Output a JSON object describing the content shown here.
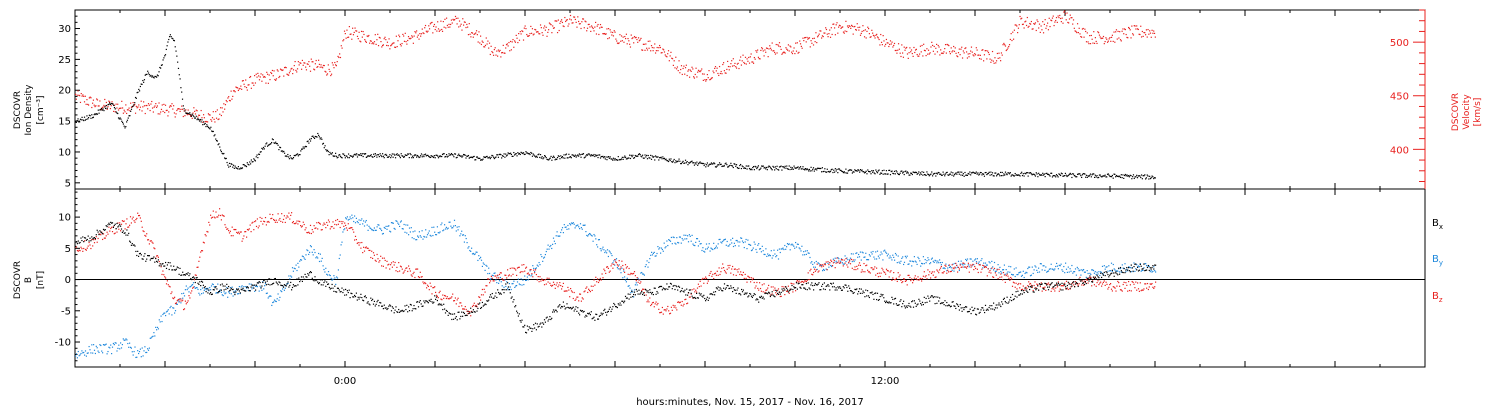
{
  "chart_data": [
    {
      "type": "scatter",
      "panel": "ion-density-and-velocity",
      "xlabel": "hours:minutes, Nov. 15, 2017 - Nov. 16, 2017",
      "x_range_hours": [
        -6,
        24
      ],
      "x_ticks": [
        {
          "hour": 0,
          "label": "0:00"
        },
        {
          "hour": 12,
          "label": "12:00"
        }
      ],
      "left_axis": {
        "label_lines": [
          "DSCOVR",
          "Ion Density",
          "[cm⁻³]"
        ],
        "ylim": [
          4,
          33
        ],
        "ticks": [
          5,
          10,
          15,
          20,
          25,
          30
        ],
        "color": "#000000"
      },
      "right_axis": {
        "label_lines": [
          "DSCOVR",
          "Velocity",
          "[km/s]"
        ],
        "ylim": [
          363,
          530
        ],
        "ticks": [
          400,
          450,
          500
        ],
        "color": "#e8201e"
      },
      "series": [
        {
          "color": "#000000",
          "axis": "left",
          "x": [
            -6.0,
            -5.6,
            -5.2,
            -4.9,
            -4.6,
            -4.4,
            -4.2,
            -4.0,
            -3.9,
            -3.8,
            -3.7,
            -3.6,
            -3.4,
            -3.2,
            -3.0,
            -2.8,
            -2.6,
            -2.4,
            -2.2,
            -2.0,
            -1.8,
            -1.6,
            -1.4,
            -1.2,
            -1.0,
            -0.8,
            -0.6,
            -0.4,
            -0.2,
            0.0,
            0.5,
            1.0,
            1.5,
            2.0,
            2.5,
            3.0,
            3.5,
            4.0,
            4.5,
            5.0,
            5.5,
            6.0,
            6.5,
            7.0,
            7.5,
            8.0,
            8.5,
            9.0,
            9.5,
            10.0,
            11.0,
            12.0,
            13.0,
            14.0,
            15.0,
            16.0,
            17.0,
            18.0
          ],
          "y": [
            15,
            16,
            18,
            14,
            20,
            23,
            22,
            26,
            29,
            28,
            23,
            17,
            16,
            15,
            14,
            11,
            8,
            7.5,
            8,
            9,
            11,
            12,
            10,
            9,
            10,
            12,
            13,
            10,
            9.5,
            9.5,
            9.5,
            9.5,
            9.5,
            9.5,
            9.5,
            9,
            9.5,
            10,
            9,
            9.5,
            9.5,
            9,
            9.5,
            9,
            8.5,
            8,
            8,
            7.5,
            7.5,
            7.5,
            7,
            6.8,
            6.5,
            6.5,
            6.5,
            6.3,
            6.2,
            6
          ]
        },
        {
          "color": "#e8201e",
          "axis": "right",
          "x": [
            -6.0,
            -5.5,
            -5.0,
            -4.5,
            -4.0,
            -3.5,
            -3.0,
            -2.8,
            -2.5,
            -2.0,
            -1.5,
            -1.0,
            -0.6,
            -0.4,
            -0.2,
            0.0,
            0.5,
            1.0,
            1.5,
            2.0,
            2.5,
            3.0,
            3.3,
            3.6,
            4.0,
            4.5,
            5.0,
            5.5,
            6.0,
            6.5,
            7.0,
            7.5,
            8.0,
            8.5,
            9.0,
            9.5,
            10.0,
            10.5,
            11.0,
            11.5,
            12.0,
            12.5,
            13.0,
            13.5,
            14.0,
            14.5,
            15.0,
            15.5,
            16.0,
            16.5,
            17.0,
            17.5,
            18.0
          ],
          "y": [
            450,
            442,
            440,
            440,
            438,
            435,
            430,
            432,
            455,
            465,
            470,
            480,
            478,
            475,
            476,
            510,
            505,
            500,
            505,
            515,
            520,
            505,
            490,
            495,
            510,
            512,
            520,
            515,
            505,
            500,
            495,
            475,
            470,
            478,
            485,
            495,
            495,
            505,
            515,
            512,
            500,
            490,
            495,
            492,
            490,
            485,
            520,
            515,
            525,
            505,
            505,
            510,
            510
          ]
        }
      ]
    },
    {
      "type": "scatter",
      "panel": "magnetic-field",
      "xlabel": "hours:minutes, Nov. 15, 2017 - Nov. 16, 2017",
      "x_range_hours": [
        -6,
        24
      ],
      "left_axis": {
        "label_lines": [
          "DSCOVR",
          "B",
          "[nT]"
        ],
        "ylim": [
          -14,
          14.5
        ],
        "ticks": [
          -10,
          -5,
          0,
          5,
          10
        ]
      },
      "zero_line": true,
      "legend": {
        "placement": "right",
        "entries": [
          {
            "label": "B",
            "sub": "x",
            "color": "#000000"
          },
          {
            "label": "B",
            "sub": "y",
            "color": "#1e88dc"
          },
          {
            "label": "B",
            "sub": "z",
            "color": "#e8201e"
          }
        ]
      },
      "series": [
        {
          "name": "Bx",
          "color": "#000000",
          "x": [
            -6.0,
            -5.6,
            -5.2,
            -4.9,
            -4.6,
            -4.2,
            -3.8,
            -3.6,
            -3.3,
            -3.0,
            -2.7,
            -2.4,
            -2.0,
            -1.6,
            -1.2,
            -0.8,
            -0.4,
            0.0,
            0.4,
            0.8,
            1.2,
            1.6,
            2.0,
            2.4,
            2.8,
            3.2,
            3.6,
            4.0,
            4.4,
            4.8,
            5.2,
            5.6,
            6.0,
            6.4,
            6.8,
            7.2,
            7.6,
            8.0,
            8.4,
            8.8,
            9.2,
            9.6,
            10.0,
            10.5,
            11.0,
            11.5,
            12.0,
            12.5,
            13.0,
            13.5,
            14.0,
            14.5,
            15.0,
            15.5,
            16.0,
            16.5,
            17.0,
            17.5,
            18.0
          ],
          "y": [
            6,
            7,
            9,
            8,
            4,
            3,
            2,
            1,
            0,
            -2,
            -1,
            -2,
            -1,
            0,
            -1,
            1,
            -1,
            -2,
            -3,
            -4,
            -5,
            -4,
            -3,
            -6,
            -5,
            -3,
            -1,
            -8,
            -7,
            -4,
            -5,
            -6,
            -4,
            -2,
            -2,
            -1,
            -2,
            -3,
            -1,
            -2,
            -3,
            -2,
            -1,
            -1,
            -1,
            -2,
            -3,
            -4,
            -3,
            -4,
            -5,
            -4,
            -2,
            -1,
            -1,
            0,
            1,
            2,
            2
          ]
        },
        {
          "name": "By",
          "color": "#1e88dc",
          "x": [
            -6.0,
            -5.6,
            -5.2,
            -4.9,
            -4.6,
            -4.4,
            -4.2,
            -4.0,
            -3.8,
            -3.6,
            -3.4,
            -3.2,
            -3.0,
            -2.6,
            -2.2,
            -1.8,
            -1.6,
            -1.4,
            -1.2,
            -1.0,
            -0.8,
            -0.6,
            -0.4,
            -0.2,
            0.0,
            0.4,
            0.8,
            1.2,
            1.6,
            2.0,
            2.4,
            2.8,
            3.2,
            3.6,
            4.0,
            4.4,
            4.8,
            5.2,
            5.6,
            6.0,
            6.4,
            6.8,
            7.2,
            7.6,
            8.0,
            8.4,
            8.8,
            9.2,
            9.6,
            10.0,
            10.5,
            11.0,
            11.5,
            12.0,
            12.5,
            13.0,
            13.5,
            14.0,
            14.5,
            15.0,
            15.5,
            16.0,
            16.5,
            17.0,
            17.5,
            18.0
          ],
          "y": [
            -12,
            -11,
            -11,
            -10,
            -12,
            -11,
            -8,
            -5,
            -5,
            -2,
            -1,
            -2,
            -1,
            -2,
            -1,
            -1,
            -4,
            -2,
            1,
            3,
            5,
            4,
            1,
            0,
            10,
            9,
            8,
            9,
            7,
            8,
            9,
            5,
            1,
            -1,
            0,
            4,
            8,
            9,
            6,
            3,
            -2,
            4,
            6,
            7,
            5,
            6,
            6,
            5,
            4,
            6,
            2,
            3,
            4,
            4,
            3,
            3,
            2,
            3,
            2,
            1,
            2,
            2,
            1,
            2,
            2,
            2
          ]
        },
        {
          "name": "Bz",
          "color": "#e8201e",
          "x": [
            -6.0,
            -5.6,
            -5.2,
            -4.9,
            -4.6,
            -4.4,
            -4.2,
            -4.0,
            -3.8,
            -3.6,
            -3.4,
            -3.2,
            -3.0,
            -2.8,
            -2.6,
            -2.3,
            -2.0,
            -1.6,
            -1.2,
            -0.8,
            -0.4,
            0.0,
            0.4,
            0.8,
            1.2,
            1.6,
            2.0,
            2.4,
            2.8,
            3.2,
            3.6,
            4.0,
            4.4,
            4.8,
            5.2,
            5.6,
            6.0,
            6.4,
            6.8,
            7.2,
            7.6,
            8.0,
            8.4,
            8.8,
            9.2,
            9.6,
            10.0,
            10.5,
            11.0,
            11.5,
            12.0,
            12.5,
            13.0,
            13.5,
            14.0,
            14.5,
            15.0,
            15.5,
            16.0,
            16.5,
            17.0,
            17.5,
            18.0
          ],
          "y": [
            5,
            6,
            8,
            9,
            10,
            7,
            4,
            0,
            -3,
            -4,
            -2,
            5,
            10,
            11,
            8,
            7,
            9,
            10,
            10,
            8,
            9,
            9,
            5,
            3,
            2,
            1,
            -2,
            -3,
            -5,
            0,
            1,
            2,
            0,
            -1,
            -3,
            0,
            3,
            1,
            -4,
            -5,
            -3,
            0,
            2,
            1,
            -1,
            -2,
            -1,
            2,
            3,
            2,
            1,
            0,
            1,
            2,
            2,
            1,
            -1,
            -1,
            -1,
            0,
            -1,
            -1,
            -1
          ]
        }
      ]
    }
  ]
}
